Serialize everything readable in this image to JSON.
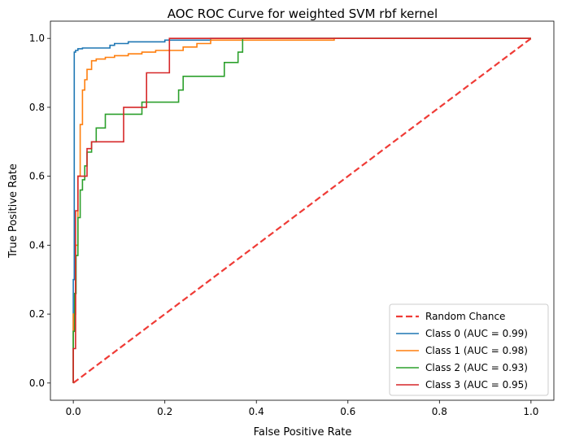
{
  "chart_data": {
    "type": "line",
    "title": "AOC ROC Curve for weighted SVM rbf kernel",
    "xlabel": "False Positive Rate",
    "ylabel": "True Positive Rate",
    "xlim": [
      -0.05,
      1.05
    ],
    "ylim": [
      -0.05,
      1.05
    ],
    "xticks": [
      "0.0",
      "0.2",
      "0.4",
      "0.6",
      "0.8",
      "1.0"
    ],
    "yticks": [
      "0.0",
      "0.2",
      "0.4",
      "0.6",
      "0.8",
      "1.0"
    ],
    "grid": false,
    "legend_position": "lower-right",
    "reference_line": {
      "name": "Random Chance",
      "color": "#ef3b36",
      "style": "dashed",
      "x": [
        0,
        1
      ],
      "y": [
        0,
        1
      ]
    },
    "series": [
      {
        "name": "Class 0 (AUC = 0.99)",
        "color": "#1f77b4",
        "x": [
          0.0,
          0.0,
          0.002,
          0.002,
          0.005,
          0.005,
          0.01,
          0.01,
          0.02,
          0.02,
          0.08,
          0.08,
          0.09,
          0.09,
          0.12,
          0.12,
          0.2,
          0.2,
          0.3,
          0.3,
          1.0
        ],
        "y": [
          0.0,
          0.3,
          0.3,
          0.96,
          0.96,
          0.965,
          0.965,
          0.97,
          0.97,
          0.972,
          0.972,
          0.98,
          0.98,
          0.985,
          0.985,
          0.99,
          0.99,
          0.995,
          0.995,
          1.0,
          1.0
        ]
      },
      {
        "name": "Class 1 (AUC = 0.98)",
        "color": "#ff7f0e",
        "x": [
          0.0,
          0.0,
          0.005,
          0.005,
          0.01,
          0.01,
          0.015,
          0.015,
          0.02,
          0.02,
          0.025,
          0.025,
          0.03,
          0.03,
          0.04,
          0.04,
          0.05,
          0.05,
          0.07,
          0.07,
          0.09,
          0.09,
          0.12,
          0.12,
          0.15,
          0.15,
          0.18,
          0.18,
          0.24,
          0.24,
          0.27,
          0.27,
          0.3,
          0.3,
          0.57,
          0.57,
          1.0
        ],
        "y": [
          0.0,
          0.2,
          0.2,
          0.4,
          0.4,
          0.6,
          0.6,
          0.75,
          0.75,
          0.85,
          0.85,
          0.88,
          0.88,
          0.91,
          0.91,
          0.935,
          0.935,
          0.94,
          0.94,
          0.945,
          0.945,
          0.95,
          0.95,
          0.955,
          0.955,
          0.96,
          0.96,
          0.965,
          0.965,
          0.975,
          0.975,
          0.985,
          0.985,
          0.995,
          0.995,
          1.0,
          1.0
        ]
      },
      {
        "name": "Class 2 (AUC = 0.93)",
        "color": "#2ca02c",
        "x": [
          0.0,
          0.0,
          0.003,
          0.003,
          0.006,
          0.006,
          0.01,
          0.01,
          0.015,
          0.015,
          0.02,
          0.02,
          0.025,
          0.025,
          0.03,
          0.03,
          0.04,
          0.04,
          0.05,
          0.05,
          0.07,
          0.07,
          0.15,
          0.15,
          0.23,
          0.23,
          0.24,
          0.24,
          0.33,
          0.33,
          0.36,
          0.36,
          0.37,
          0.37,
          1.0
        ],
        "y": [
          0.0,
          0.15,
          0.15,
          0.26,
          0.26,
          0.37,
          0.37,
          0.48,
          0.48,
          0.56,
          0.56,
          0.59,
          0.59,
          0.63,
          0.63,
          0.67,
          0.67,
          0.7,
          0.7,
          0.74,
          0.74,
          0.78,
          0.78,
          0.815,
          0.815,
          0.85,
          0.85,
          0.89,
          0.89,
          0.93,
          0.93,
          0.96,
          0.96,
          1.0,
          1.0
        ]
      },
      {
        "name": "Class 3 (AUC = 0.95)",
        "color": "#d62728",
        "x": [
          0.0,
          0.0,
          0.005,
          0.005,
          0.01,
          0.01,
          0.03,
          0.03,
          0.04,
          0.04,
          0.11,
          0.11,
          0.16,
          0.16,
          0.21,
          0.21,
          1.0
        ],
        "y": [
          0.0,
          0.1,
          0.1,
          0.5,
          0.5,
          0.6,
          0.6,
          0.68,
          0.68,
          0.7,
          0.7,
          0.8,
          0.8,
          0.9,
          0.9,
          1.0,
          1.0
        ]
      }
    ]
  }
}
